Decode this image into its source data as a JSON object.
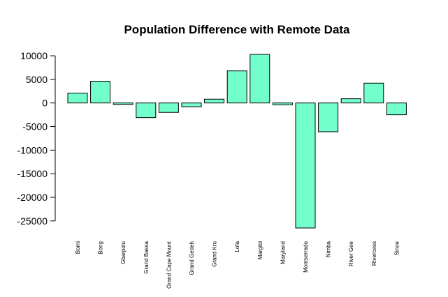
{
  "chart_data": {
    "type": "bar",
    "title": "Population Difference with Remote Data",
    "xlabel": "",
    "ylabel": "",
    "categories": [
      "Bomi",
      "Bong",
      "Gbarpolu",
      "Grand Bassa",
      "Grand Cape Mount",
      "Grand Gedeh",
      "Grand Kru",
      "Lofa",
      "Margibi",
      "Maryland",
      "Montserrado",
      "Nimba",
      "River Gee",
      "Rivercess",
      "Sinoe"
    ],
    "values": [
      2100,
      4600,
      -300,
      -3100,
      -2000,
      -800,
      800,
      6800,
      10300,
      -400,
      -26500,
      -6100,
      900,
      4200,
      -2500
    ],
    "yticks": [
      10000,
      5000,
      0,
      -5000,
      -10000,
      -15000,
      -20000,
      -25000
    ],
    "ylim": [
      -26500,
      10300
    ],
    "grid": false,
    "legend": "none",
    "colors": {
      "bar_fill": "#73ffcc",
      "bar_stroke": "#000000",
      "axis": "#000000"
    }
  }
}
